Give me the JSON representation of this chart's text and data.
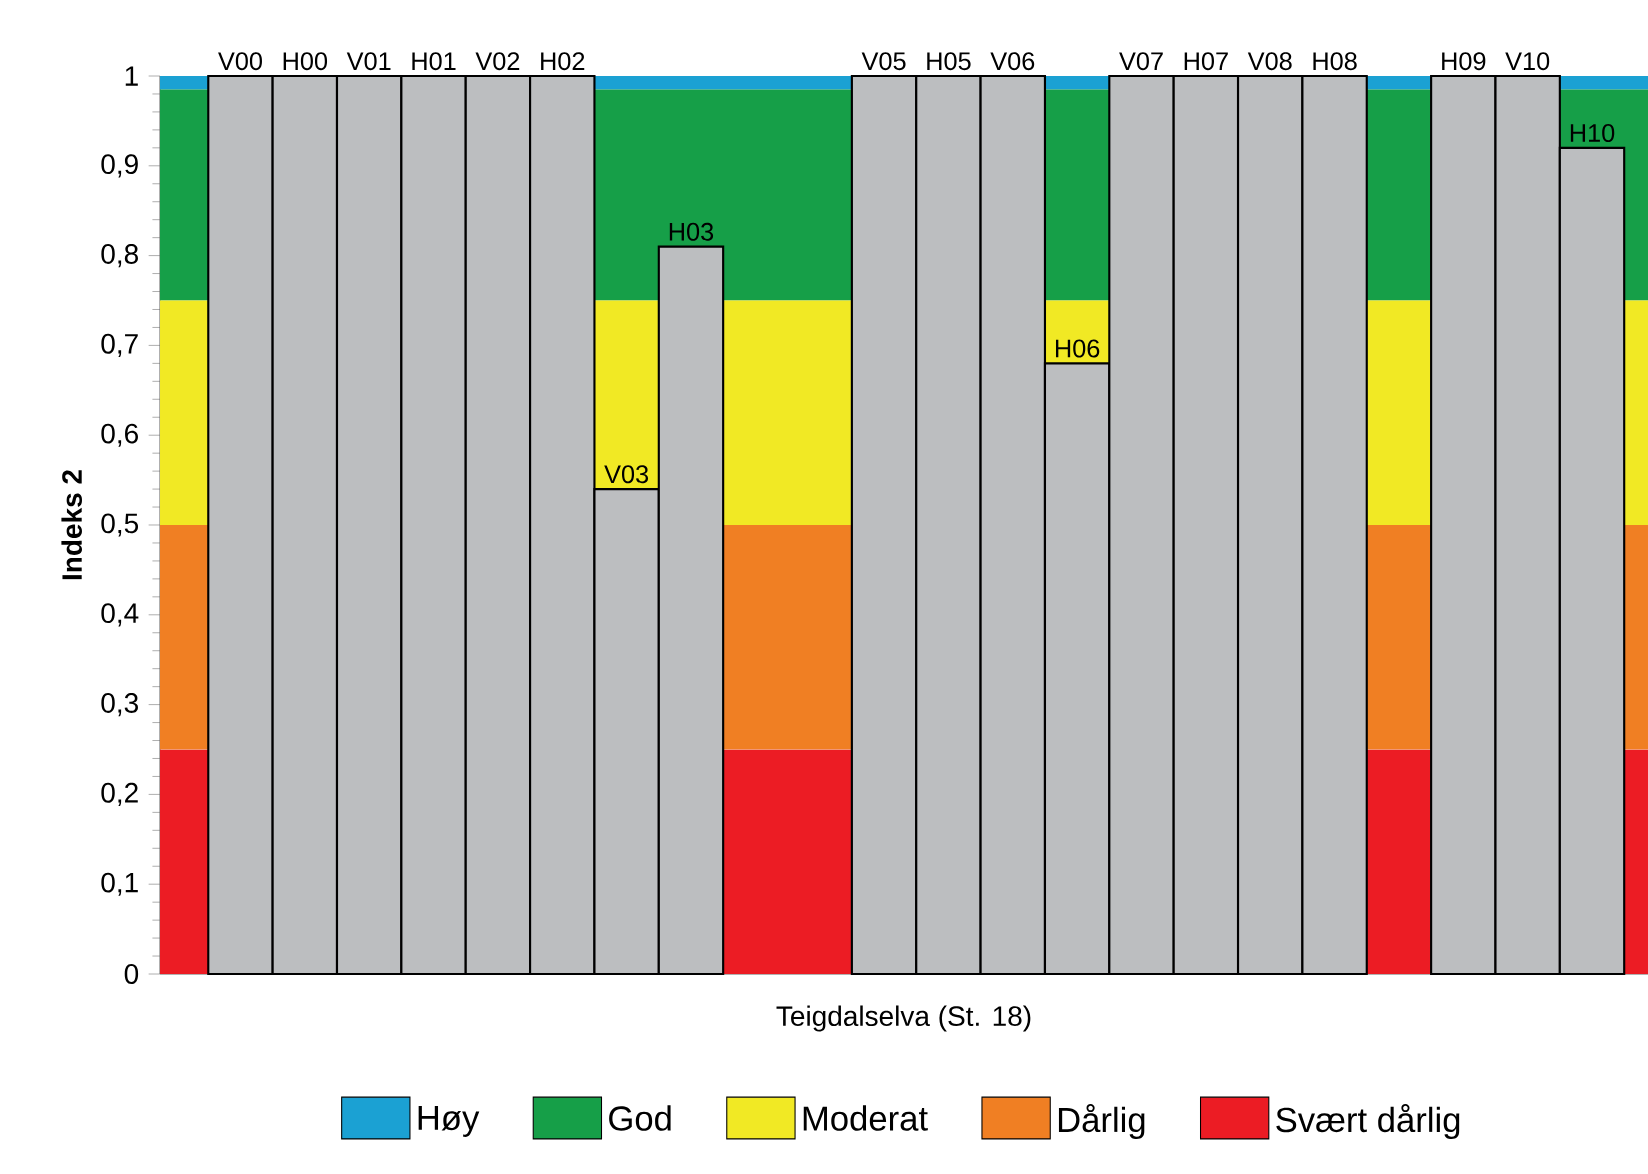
{
  "chart_data": {
    "type": "bar",
    "xlabel": "Teigdalselva (St. 18)",
    "ylabel": "Indeks 2",
    "categories": [
      "V00",
      "H00",
      "V01",
      "H01",
      "V02",
      "H02",
      "V03",
      "H03",
      null,
      null,
      "V05",
      "H05",
      "V06",
      "H06",
      "V07",
      "H07",
      "V08",
      "H08",
      null,
      "H09",
      "V10",
      "H10"
    ],
    "values": [
      1,
      1,
      1,
      1,
      1,
      1,
      0.54,
      0.81,
      null,
      null,
      1,
      1,
      1,
      0.68,
      1,
      1,
      1,
      1,
      null,
      1,
      1,
      0.92
    ],
    "color": "#bcbec0",
    "ylim": [
      0,
      1
    ],
    "yticks": [
      0,
      {
        "value": 0.1,
        "label": "0,1"
      },
      {
        "value": 0.2,
        "label": "0,2"
      },
      {
        "value": 0.3,
        "label": "0,3"
      },
      {
        "value": 0.4,
        "label": "0,4"
      },
      {
        "value": 0.5,
        "label": "0,5"
      },
      {
        "value": 0.6,
        "label": "0,6"
      },
      {
        "value": 0.7,
        "label": "0,7"
      },
      {
        "value": 0.8,
        "label": "0,8"
      },
      {
        "value": 0.9,
        "label": "0,9"
      },
      1
    ],
    "bands": [
      {
        "axis": "y",
        "from": 0.985,
        "to": 1,
        "label": "Høy",
        "color": "#1ba1d3"
      },
      {
        "axis": "y",
        "from": 0.75,
        "to": 0.985,
        "label": "God",
        "color": "#169f48"
      },
      {
        "axis": "y",
        "from": 0.5,
        "to": 0.75,
        "label": "Moderat",
        "color": "#f1e924"
      },
      {
        "axis": "y",
        "from": 0.25,
        "to": 0.5,
        "label": "Dårlig",
        "color": "#f07f23"
      },
      {
        "axis": "y",
        "from": 0,
        "to": 0.25,
        "label": "Svært dårlig",
        "color": "#ec1c24"
      }
    ],
    "legend": "bottom"
  }
}
